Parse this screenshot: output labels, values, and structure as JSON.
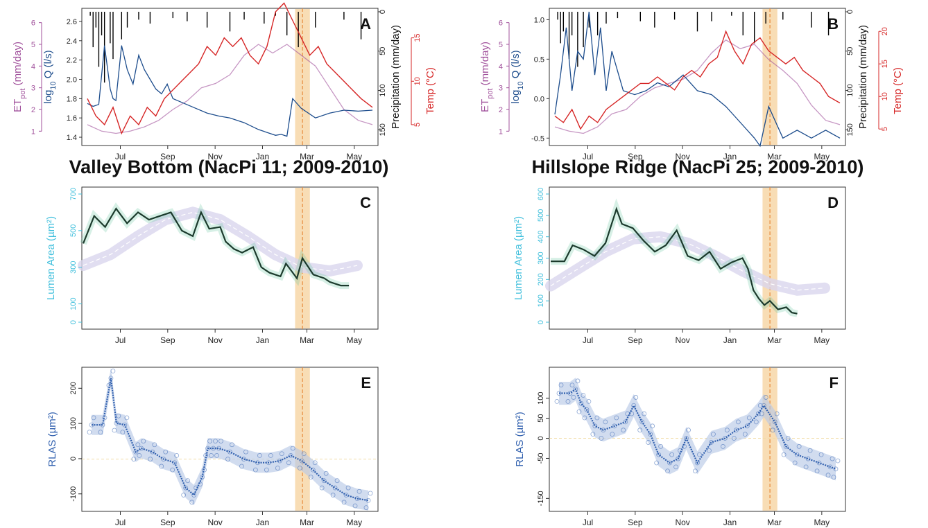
{
  "figure": {
    "titles": {
      "left": "Valley Bottom (NacPi 11; 2009-2010)",
      "right": "Hillslope Ridge (NacPi 25; 2009-2010)"
    },
    "month_ticks": [
      "Jul",
      "Sep",
      "Nov",
      "Jan",
      "Mar",
      "May"
    ],
    "colors": {
      "et": "#a0509b",
      "discharge": "#1c4c8c",
      "precip": "#000000",
      "temp": "#d62626",
      "lumen_axis": "#3fbfdc",
      "lumen_line": "#1b3a2c",
      "lumen_glow": "#5fc39a",
      "fit": "#d9d6ee",
      "rlas": "#2f5fae",
      "rlas_band": "#b8c9e6",
      "highlight": "#f6d29c",
      "dashed": "#e8893a"
    }
  },
  "chart_data": [
    {
      "panel": "A",
      "type": "line",
      "ylabel_et": "ET",
      "ylabel_et_sub": "pot",
      "ylabel_et_unit": " (mm/day)",
      "ylabel_q": "log",
      "ylabel_q_sub": "10",
      "ylabel_q_unit": " Q (l/s)",
      "ylabel_precip": "Precipitation (mm/day)",
      "ylabel_temp": "Temp (°C)",
      "et_ticks": [
        "1",
        "2",
        "3",
        "4",
        "5",
        "6"
      ],
      "q_ticks": [
        "1.4",
        "1.6",
        "1.8",
        "2.0",
        "2.2",
        "2.4",
        "2.6"
      ],
      "precip_ticks": [
        "0",
        "50",
        "100",
        "150"
      ],
      "temp_ticks": [
        "5",
        "10",
        "15"
      ],
      "series": [
        {
          "name": "discharge",
          "x": [
            0,
            0.02,
            0.04,
            0.06,
            0.08,
            0.09,
            0.1,
            0.12,
            0.14,
            0.16,
            0.18,
            0.2,
            0.22,
            0.24,
            0.26,
            0.28,
            0.3,
            0.34,
            0.38,
            0.42,
            0.46,
            0.5,
            0.55,
            0.6,
            0.64,
            0.66,
            0.68,
            0.7,
            0.72,
            0.75,
            0.8,
            0.85,
            0.9,
            0.95,
            1
          ],
          "y": [
            1.75,
            1.72,
            1.74,
            2.35,
            1.9,
            1.8,
            1.78,
            2.35,
            2.1,
            1.95,
            2.25,
            2.1,
            2.0,
            1.9,
            1.85,
            1.95,
            1.8,
            1.75,
            1.7,
            1.65,
            1.62,
            1.6,
            1.55,
            1.48,
            1.44,
            1.42,
            1.43,
            1.41,
            1.8,
            1.7,
            1.6,
            1.65,
            1.68,
            1.67,
            1.68
          ]
        },
        {
          "name": "temp",
          "x": [
            0,
            0.03,
            0.06,
            0.09,
            0.12,
            0.15,
            0.18,
            0.21,
            0.24,
            0.27,
            0.3,
            0.33,
            0.36,
            0.39,
            0.42,
            0.45,
            0.48,
            0.51,
            0.54,
            0.57,
            0.6,
            0.63,
            0.66,
            0.69,
            0.72,
            0.75,
            0.78,
            0.81,
            0.84,
            0.87,
            0.9,
            0.93,
            0.96,
            1
          ],
          "y": [
            8,
            6,
            5,
            7,
            4,
            6,
            5,
            7,
            6,
            8,
            9,
            10,
            11,
            12,
            14,
            13,
            15,
            14,
            15,
            13,
            12,
            14,
            18,
            19,
            17,
            15,
            13,
            14,
            12,
            11,
            10,
            9,
            8,
            7
          ]
        },
        {
          "name": "et",
          "x": [
            0,
            0.05,
            0.1,
            0.15,
            0.2,
            0.25,
            0.3,
            0.35,
            0.4,
            0.45,
            0.5,
            0.55,
            0.6,
            0.65,
            0.7,
            0.75,
            0.8,
            0.85,
            0.9,
            0.95,
            1
          ],
          "y": [
            1.3,
            1.0,
            0.9,
            1.0,
            1.2,
            1.5,
            2.0,
            2.4,
            3.0,
            3.2,
            3.6,
            4.5,
            5.0,
            4.6,
            5.0,
            4.5,
            4.0,
            3.0,
            2.0,
            1.5,
            1.3
          ]
        },
        {
          "name": "precip",
          "x": [
            0.01,
            0.02,
            0.03,
            0.04,
            0.05,
            0.06,
            0.08,
            0.09,
            0.12,
            0.14,
            0.18,
            0.22,
            0.3,
            0.35,
            0.42,
            0.5,
            0.55,
            0.62,
            0.66,
            0.7,
            0.74,
            0.8,
            0.9,
            0.96
          ],
          "y": [
            5,
            45,
            20,
            70,
            30,
            90,
            40,
            60,
            35,
            20,
            10,
            15,
            8,
            12,
            20,
            25,
            10,
            15,
            5,
            30,
            45,
            20,
            10,
            35
          ]
        }
      ]
    },
    {
      "panel": "B",
      "type": "line",
      "ylabel_et": "ET",
      "ylabel_et_sub": "pot",
      "ylabel_et_unit": " (mm/day)",
      "ylabel_q": "log",
      "ylabel_q_sub": "10",
      "ylabel_q_unit": " Q (l/s)",
      "ylabel_precip": "Precipitation (mm/day)",
      "ylabel_temp": "Temp (°C)",
      "et_ticks": [
        "1",
        "2",
        "3",
        "4",
        "5",
        "6"
      ],
      "q_ticks": [
        "-0.5",
        "0.0",
        "0.5",
        "1.0"
      ],
      "precip_ticks": [
        "0",
        "50",
        "100",
        "150"
      ],
      "temp_ticks": [
        "5",
        "10",
        "15",
        "20"
      ],
      "series": [
        {
          "name": "discharge",
          "x": [
            0,
            0.02,
            0.04,
            0.06,
            0.08,
            0.1,
            0.12,
            0.14,
            0.16,
            0.18,
            0.2,
            0.24,
            0.28,
            0.32,
            0.36,
            0.4,
            0.45,
            0.5,
            0.55,
            0.6,
            0.65,
            0.7,
            0.72,
            0.75,
            0.8,
            0.85,
            0.9,
            0.95,
            1
          ],
          "y": [
            -0.2,
            0.3,
            0.9,
            0.1,
            0.6,
            0.5,
            1.1,
            0.3,
            0.9,
            0.1,
            0.6,
            0.1,
            0.05,
            0.1,
            0.2,
            0.15,
            0.3,
            0.1,
            0.05,
            -0.1,
            -0.3,
            -0.5,
            -0.6,
            -0.1,
            -0.5,
            -0.4,
            -0.5,
            -0.4,
            -0.5
          ]
        },
        {
          "name": "temp",
          "x": [
            0,
            0.03,
            0.06,
            0.09,
            0.12,
            0.15,
            0.18,
            0.21,
            0.24,
            0.27,
            0.3,
            0.33,
            0.36,
            0.39,
            0.42,
            0.45,
            0.48,
            0.51,
            0.54,
            0.57,
            0.6,
            0.63,
            0.66,
            0.69,
            0.72,
            0.75,
            0.78,
            0.81,
            0.84,
            0.87,
            0.9,
            0.93,
            0.96,
            1
          ],
          "y": [
            7,
            6,
            8,
            5,
            7,
            6,
            8,
            9,
            10,
            11,
            12,
            12,
            13,
            12,
            11,
            13,
            14,
            13,
            15,
            16,
            20,
            17,
            15,
            18,
            19,
            17,
            16,
            15,
            16,
            14,
            13,
            12,
            10,
            9
          ]
        },
        {
          "name": "et",
          "x": [
            0,
            0.05,
            0.1,
            0.15,
            0.2,
            0.25,
            0.3,
            0.35,
            0.4,
            0.45,
            0.5,
            0.55,
            0.6,
            0.65,
            0.7,
            0.75,
            0.8,
            0.85,
            0.9,
            0.95,
            1
          ],
          "y": [
            1.2,
            1.0,
            0.9,
            1.2,
            1.8,
            2.0,
            2.6,
            3.0,
            3.2,
            3.4,
            3.8,
            4.6,
            5.2,
            4.8,
            5.0,
            4.3,
            3.8,
            3.2,
            2.2,
            1.5,
            1.3
          ]
        },
        {
          "name": "precip",
          "x": [
            0.01,
            0.02,
            0.03,
            0.05,
            0.06,
            0.08,
            0.1,
            0.12,
            0.15,
            0.18,
            0.22,
            0.3,
            0.35,
            0.42,
            0.5,
            0.55,
            0.62,
            0.66,
            0.7,
            0.74,
            0.8,
            0.9,
            0.96
          ],
          "y": [
            10,
            40,
            25,
            60,
            30,
            70,
            45,
            20,
            30,
            15,
            8,
            12,
            20,
            10,
            25,
            12,
            5,
            30,
            40,
            15,
            10,
            20,
            30
          ]
        }
      ]
    },
    {
      "panel": "C",
      "type": "line",
      "ylabel": "Lumen Area (µm²)",
      "yticks": [
        "0",
        "100",
        "300",
        "500",
        "700"
      ],
      "ylim": [
        0,
        700
      ],
      "series": [
        {
          "name": "fit",
          "x": [
            0,
            0.1,
            0.2,
            0.3,
            0.4,
            0.5,
            0.6,
            0.7,
            0.8,
            0.9,
            1
          ],
          "y": [
            310,
            370,
            470,
            560,
            600,
            560,
            470,
            370,
            300,
            280,
            310
          ]
        },
        {
          "name": "observed",
          "x": [
            0,
            0.04,
            0.08,
            0.12,
            0.16,
            0.2,
            0.24,
            0.28,
            0.32,
            0.36,
            0.4,
            0.43,
            0.46,
            0.5,
            0.52,
            0.55,
            0.58,
            0.62,
            0.65,
            0.68,
            0.72,
            0.74,
            0.78,
            0.8,
            0.84,
            0.88,
            0.9,
            0.94,
            0.97
          ],
          "y": [
            430,
            580,
            520,
            620,
            540,
            600,
            560,
            580,
            600,
            500,
            470,
            600,
            510,
            520,
            440,
            400,
            380,
            410,
            300,
            270,
            250,
            320,
            240,
            350,
            260,
            240,
            220,
            200,
            200
          ]
        }
      ]
    },
    {
      "panel": "D",
      "type": "line",
      "ylabel": "Lumen Area (µm²)",
      "yticks": [
        "0",
        "100",
        "200",
        "300",
        "400",
        "500",
        "600"
      ],
      "ylim": [
        0,
        600
      ],
      "series": [
        {
          "name": "fit",
          "x": [
            0,
            0.1,
            0.2,
            0.3,
            0.4,
            0.5,
            0.6,
            0.7,
            0.8,
            0.9,
            1
          ],
          "y": [
            170,
            250,
            330,
            390,
            400,
            370,
            310,
            240,
            180,
            150,
            160
          ]
        },
        {
          "name": "observed",
          "x": [
            0,
            0.05,
            0.08,
            0.12,
            0.16,
            0.2,
            0.24,
            0.26,
            0.3,
            0.34,
            0.38,
            0.42,
            0.46,
            0.5,
            0.54,
            0.58,
            0.62,
            0.66,
            0.7,
            0.72,
            0.74,
            0.76,
            0.78,
            0.8,
            0.83,
            0.86,
            0.88,
            0.9
          ],
          "y": [
            285,
            285,
            360,
            340,
            310,
            370,
            530,
            460,
            440,
            380,
            330,
            360,
            430,
            310,
            290,
            330,
            250,
            280,
            300,
            250,
            150,
            110,
            80,
            100,
            60,
            70,
            45,
            40
          ]
        }
      ]
    },
    {
      "panel": "E",
      "type": "scatter",
      "ylabel": "RLAS (µm²)",
      "yticks": [
        "-100",
        "0",
        "100",
        "200"
      ],
      "ylim": [
        -130,
        240
      ],
      "series": [
        {
          "name": "rlas",
          "x": [
            0.0,
            0.04,
            0.07,
            0.09,
            0.12,
            0.16,
            0.18,
            0.22,
            0.26,
            0.3,
            0.34,
            0.37,
            0.4,
            0.42,
            0.44,
            0.46,
            0.5,
            0.55,
            0.6,
            0.64,
            0.68,
            0.72,
            0.76,
            0.8,
            0.84,
            0.88,
            0.92,
            0.96,
            1.0
          ],
          "y": [
            95,
            95,
            225,
            100,
            95,
            20,
            30,
            20,
            0,
            -10,
            -80,
            -100,
            -50,
            30,
            30,
            30,
            20,
            0,
            -10,
            -10,
            -5,
            10,
            -5,
            -30,
            -60,
            -80,
            -100,
            -110,
            -115
          ]
        }
      ]
    },
    {
      "panel": "F",
      "type": "scatter",
      "ylabel": "RLAS (µm²)",
      "yticks": [
        "-150",
        "-50",
        "0",
        "50",
        "100"
      ],
      "ylim": [
        -165,
        160
      ],
      "series": [
        {
          "name": "rlas",
          "x": [
            0.0,
            0.04,
            0.06,
            0.08,
            0.1,
            0.13,
            0.16,
            0.2,
            0.24,
            0.27,
            0.3,
            0.33,
            0.36,
            0.4,
            0.43,
            0.46,
            0.5,
            0.55,
            0.6,
            0.64,
            0.68,
            0.72,
            0.74,
            0.78,
            0.82,
            0.86,
            0.9,
            0.94,
            0.98,
            1.0
          ],
          "y": [
            110,
            110,
            120,
            85,
            70,
            30,
            20,
            30,
            40,
            80,
            40,
            10,
            -40,
            -60,
            -50,
            0,
            -60,
            -10,
            0,
            20,
            30,
            60,
            80,
            40,
            -20,
            -40,
            -50,
            -60,
            -70,
            -75
          ]
        }
      ]
    }
  ],
  "panel_letters": [
    "A",
    "B",
    "C",
    "D",
    "E",
    "F"
  ]
}
